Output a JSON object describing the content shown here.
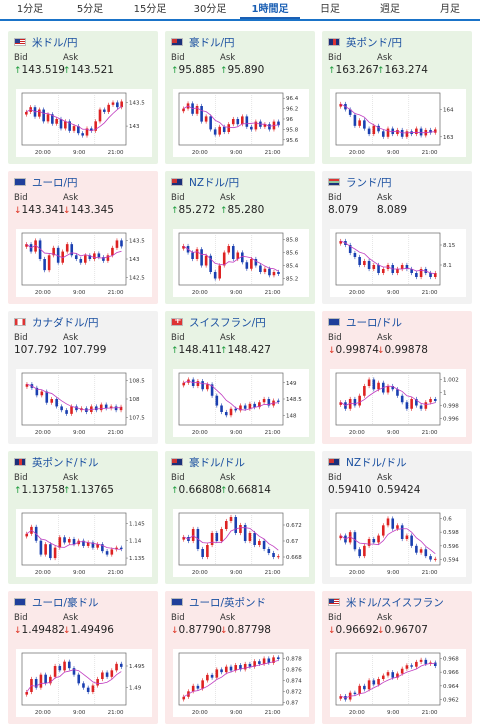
{
  "tabs": [
    "1分足",
    "5分足",
    "15分足",
    "30分足",
    "1時間足",
    "日足",
    "週足",
    "月足"
  ],
  "active_tab": 4,
  "labels": {
    "bid": "Bid",
    "ask": "Ask"
  },
  "colors": {
    "up_bg": "#e8f3e4",
    "down_bg": "#fbe9e9",
    "up_candle": "#d22",
    "down_candle": "#1a3fb0",
    "ma": "#c03cc0"
  },
  "cards": [
    {
      "pair": "米ドル/円",
      "flag": "us",
      "trend": "up",
      "bid": "143.519",
      "ask": "143.521",
      "bid_dir": "up",
      "ask_dir": "up",
      "chart_data": {
        "type": "candlestick",
        "x_labels": [
          "20:00",
          "9:00",
          "21:00"
        ],
        "y_ticks": [
          "143.5",
          "143"
        ],
        "ylim": [
          142.6,
          143.7
        ],
        "closes": [
          143.3,
          143.4,
          143.2,
          143.35,
          143.1,
          143.25,
          143.05,
          143.15,
          142.95,
          143.1,
          142.9,
          143.0,
          142.85,
          142.8,
          142.95,
          142.9,
          143.1,
          143.35,
          143.3,
          143.45,
          143.5,
          143.4,
          143.52
        ]
      }
    },
    {
      "pair": "豪ドル/円",
      "flag": "au",
      "trend": "up",
      "bid": "95.885",
      "ask": "95.890",
      "bid_dir": "up",
      "ask_dir": "up",
      "chart_data": {
        "type": "candlestick",
        "x_labels": [
          "20:00",
          "9:00",
          "21:00"
        ],
        "y_ticks": [
          "96.4",
          "96.2",
          "96",
          "95.8",
          "95.6"
        ],
        "ylim": [
          95.5,
          96.5
        ],
        "closes": [
          96.2,
          96.3,
          96.1,
          96.25,
          95.95,
          96.05,
          95.8,
          95.7,
          95.85,
          95.75,
          95.9,
          96.0,
          95.9,
          96.05,
          95.85,
          95.8,
          95.95,
          95.85,
          95.9,
          95.8,
          95.95,
          95.88
        ]
      }
    },
    {
      "pair": "英ポンド/円",
      "flag": "gb",
      "trend": "up",
      "bid": "163.267",
      "ask": "163.274",
      "bid_dir": "up",
      "ask_dir": "up",
      "chart_data": {
        "type": "candlestick",
        "x_labels": [
          "20:00",
          "9:00",
          "21:00"
        ],
        "y_ticks": [
          "164",
          "163"
        ],
        "ylim": [
          162.7,
          164.6
        ],
        "closes": [
          164.2,
          164.0,
          163.8,
          163.4,
          163.6,
          163.3,
          163.1,
          163.4,
          163.2,
          163.0,
          163.3,
          163.1,
          163.25,
          163.0,
          163.2,
          163.1,
          163.3,
          163.05,
          163.25,
          163.15,
          163.27
        ]
      }
    },
    {
      "pair": "ユーロ/円",
      "flag": "eu",
      "trend": "down",
      "bid": "143.341",
      "ask": "143.345",
      "bid_dir": "down",
      "ask_dir": "down",
      "chart_data": {
        "type": "candlestick",
        "x_labels": [
          "20:00",
          "9:00",
          "21:00"
        ],
        "y_ticks": [
          "143.5",
          "143",
          "142.5"
        ],
        "ylim": [
          142.3,
          143.7
        ],
        "closes": [
          143.4,
          143.2,
          143.5,
          143.0,
          142.7,
          143.1,
          143.3,
          142.9,
          143.2,
          143.4,
          143.1,
          143.0,
          142.9,
          143.1,
          143.0,
          143.15,
          143.05,
          142.95,
          143.1,
          143.3,
          143.5,
          143.34
        ]
      }
    },
    {
      "pair": "NZドル/円",
      "flag": "nz",
      "trend": "up",
      "bid": "85.272",
      "ask": "85.280",
      "bid_dir": "up",
      "ask_dir": "up",
      "chart_data": {
        "type": "candlestick",
        "x_labels": [
          "20:00",
          "9:00",
          "21:00"
        ],
        "y_ticks": [
          "85.8",
          "85.6",
          "85.4",
          "85.2"
        ],
        "ylim": [
          85.1,
          85.9
        ],
        "closes": [
          85.7,
          85.6,
          85.5,
          85.65,
          85.4,
          85.55,
          85.3,
          85.2,
          85.4,
          85.6,
          85.7,
          85.5,
          85.6,
          85.45,
          85.35,
          85.5,
          85.4,
          85.3,
          85.35,
          85.25,
          85.3,
          85.27
        ]
      }
    },
    {
      "pair": "ランド/円",
      "flag": "za",
      "trend": "flat",
      "bid": "8.079",
      "ask": "8.089",
      "bid_dir": "none",
      "ask_dir": "none",
      "chart_data": {
        "type": "candlestick",
        "x_labels": [
          "20:00",
          "9:00",
          "21:00"
        ],
        "y_ticks": [
          "8.15",
          "8.1"
        ],
        "ylim": [
          8.05,
          8.18
        ],
        "closes": [
          8.16,
          8.15,
          8.13,
          8.12,
          8.1,
          8.11,
          8.09,
          8.1,
          8.08,
          8.09,
          8.1,
          8.08,
          8.09,
          8.1,
          8.09,
          8.08,
          8.07,
          8.09,
          8.08,
          8.07,
          8.08
        ]
      }
    },
    {
      "pair": "カナダドル/円",
      "flag": "ca",
      "trend": "flat",
      "bid": "107.792",
      "ask": "107.799",
      "bid_dir": "none",
      "ask_dir": "none",
      "chart_data": {
        "type": "candlestick",
        "x_labels": [
          "20:00",
          "9:00",
          "21:00"
        ],
        "y_ticks": [
          "108.5",
          "108",
          "107.5"
        ],
        "ylim": [
          107.3,
          108.7
        ],
        "closes": [
          108.4,
          108.3,
          108.1,
          108.2,
          107.9,
          108.0,
          107.8,
          107.7,
          107.6,
          107.8,
          107.7,
          107.75,
          107.65,
          107.8,
          107.7,
          107.85,
          107.75,
          107.8,
          107.7,
          107.79
        ]
      }
    },
    {
      "pair": "スイスフラン/円",
      "flag": "ch",
      "trend": "up",
      "bid": "148.411",
      "ask": "148.427",
      "bid_dir": "up",
      "ask_dir": "up",
      "chart_data": {
        "type": "candlestick",
        "x_labels": [
          "20:00",
          "9:00",
          "21:00"
        ],
        "y_ticks": [
          "149",
          "148.5",
          "148"
        ],
        "ylim": [
          147.7,
          149.3
        ],
        "closes": [
          149.0,
          149.1,
          148.9,
          149.05,
          148.8,
          148.95,
          148.6,
          148.3,
          148.1,
          148.0,
          148.2,
          148.15,
          148.3,
          148.2,
          148.35,
          148.25,
          148.4,
          148.5,
          148.3,
          148.45,
          148.41
        ]
      }
    },
    {
      "pair": "ユーロ/ドル",
      "flag": "eu",
      "trend": "down",
      "bid": "0.99874",
      "ask": "0.99878",
      "bid_dir": "down",
      "ask_dir": "down",
      "chart_data": {
        "type": "candlestick",
        "x_labels": [
          "20:00",
          "9:00",
          "21:00"
        ],
        "y_ticks": [
          "1.002",
          "1",
          "0.998",
          "0.996"
        ],
        "ylim": [
          0.995,
          1.003
        ],
        "closes": [
          0.9985,
          0.9975,
          0.999,
          0.998,
          0.9995,
          1.001,
          1.002,
          1.0005,
          1.0015,
          1.0,
          1.001,
          1.0005,
          0.9995,
          0.9985,
          0.9975,
          0.999,
          0.998,
          0.9975,
          0.9985,
          0.999,
          0.9987
        ]
      }
    },
    {
      "pair": "英ポンド/ドル",
      "flag": "gb",
      "trend": "up",
      "bid": "1.13758",
      "ask": "1.13765",
      "bid_dir": "up",
      "ask_dir": "up",
      "chart_data": {
        "type": "candlestick",
        "x_labels": [
          "20:00",
          "9:00",
          "21:00"
        ],
        "y_ticks": [
          "1.145",
          "1.14",
          "1.135"
        ],
        "ylim": [
          1.133,
          1.148
        ],
        "closes": [
          1.142,
          1.144,
          1.14,
          1.136,
          1.139,
          1.135,
          1.138,
          1.141,
          1.1395,
          1.1405,
          1.139,
          1.14,
          1.1385,
          1.1395,
          1.138,
          1.139,
          1.137,
          1.136,
          1.1375,
          1.138,
          1.1376
        ]
      }
    },
    {
      "pair": "豪ドル/ドル",
      "flag": "au",
      "trend": "up",
      "bid": "0.66808",
      "ask": "0.66814",
      "bid_dir": "up",
      "ask_dir": "up",
      "chart_data": {
        "type": "candlestick",
        "x_labels": [
          "20:00",
          "9:00",
          "21:00"
        ],
        "y_ticks": [
          "0.672",
          "0.67",
          "0.668"
        ],
        "ylim": [
          0.667,
          0.6735
        ],
        "closes": [
          0.6705,
          0.67,
          0.6715,
          0.669,
          0.668,
          0.6695,
          0.671,
          0.67,
          0.6715,
          0.6725,
          0.673,
          0.671,
          0.672,
          0.67,
          0.671,
          0.6695,
          0.67,
          0.669,
          0.6685,
          0.668,
          0.6681
        ]
      }
    },
    {
      "pair": "NZドル/ドル",
      "flag": "nz",
      "trend": "flat",
      "bid": "0.59410",
      "ask": "0.59424",
      "bid_dir": "none",
      "ask_dir": "none",
      "chart_data": {
        "type": "candlestick",
        "x_labels": [
          "20:00",
          "9:00",
          "21:00"
        ],
        "y_ticks": [
          "0.6",
          "0.598",
          "0.596",
          "0.594"
        ],
        "ylim": [
          0.5932,
          0.6008
        ],
        "closes": [
          0.5975,
          0.5965,
          0.598,
          0.5955,
          0.5945,
          0.596,
          0.597,
          0.5965,
          0.5975,
          0.599,
          0.6,
          0.5985,
          0.599,
          0.597,
          0.5975,
          0.596,
          0.595,
          0.5955,
          0.5945,
          0.594,
          0.5941
        ]
      }
    },
    {
      "pair": "ユーロ/豪ドル",
      "flag": "eu",
      "trend": "down",
      "bid": "1.49482",
      "ask": "1.49496",
      "bid_dir": "down",
      "ask_dir": "down",
      "chart_data": {
        "type": "candlestick",
        "x_labels": [
          "20:00",
          "9:00",
          "21:00"
        ],
        "y_ticks": [
          "1.495",
          "1.49"
        ],
        "ylim": [
          1.486,
          1.498
        ],
        "closes": [
          1.489,
          1.492,
          1.49,
          1.493,
          1.491,
          1.4925,
          1.495,
          1.494,
          1.496,
          1.4945,
          1.493,
          1.491,
          1.49,
          1.489,
          1.4905,
          1.492,
          1.4935,
          1.4925,
          1.494,
          1.4955,
          1.4948
        ]
      }
    },
    {
      "pair": "ユーロ/英ポンド",
      "flag": "eu",
      "trend": "down",
      "bid": "0.87790",
      "ask": "0.87798",
      "bid_dir": "down",
      "ask_dir": "down",
      "chart_data": {
        "type": "candlestick",
        "x_labels": [
          "20:00",
          "9:00",
          "21:00"
        ],
        "y_ticks": [
          "0.878",
          "0.876",
          "0.874",
          "0.872",
          "0.87"
        ],
        "ylim": [
          0.8695,
          0.879
        ],
        "closes": [
          0.871,
          0.872,
          0.873,
          0.8725,
          0.874,
          0.875,
          0.8745,
          0.876,
          0.8755,
          0.8765,
          0.8758,
          0.8768,
          0.876,
          0.877,
          0.8765,
          0.8775,
          0.877,
          0.878,
          0.8772,
          0.8782,
          0.8779
        ]
      }
    },
    {
      "pair": "米ドル/スイスフラン",
      "flag": "us",
      "trend": "down",
      "bid": "0.96692",
      "ask": "0.96707",
      "bid_dir": "down",
      "ask_dir": "down",
      "chart_data": {
        "type": "candlestick",
        "x_labels": [
          "20:00",
          "9:00",
          "21:00"
        ],
        "y_ticks": [
          "0.968",
          "0.966",
          "0.964",
          "0.962"
        ],
        "ylim": [
          0.9612,
          0.9688
        ],
        "closes": [
          0.9625,
          0.962,
          0.963,
          0.9628,
          0.964,
          0.9635,
          0.9648,
          0.9642,
          0.965,
          0.9655,
          0.966,
          0.9652,
          0.9658,
          0.9665,
          0.967,
          0.9668,
          0.9675,
          0.9678,
          0.9672,
          0.9674,
          0.9669
        ]
      }
    }
  ]
}
